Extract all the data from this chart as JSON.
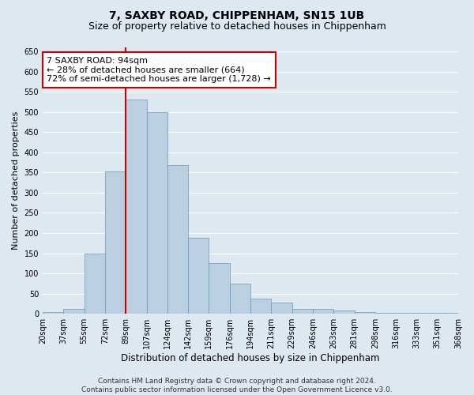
{
  "title": "7, SAXBY ROAD, CHIPPENHAM, SN15 1UB",
  "subtitle": "Size of property relative to detached houses in Chippenham",
  "xlabel": "Distribution of detached houses by size in Chippenham",
  "ylabel": "Number of detached properties",
  "bar_values": [
    5,
    13,
    150,
    353,
    530,
    500,
    368,
    188,
    125,
    75,
    38,
    27,
    13,
    13,
    8,
    5,
    3,
    3,
    3,
    2
  ],
  "categories": [
    "20sqm",
    "37sqm",
    "55sqm",
    "72sqm",
    "89sqm",
    "107sqm",
    "124sqm",
    "142sqm",
    "159sqm",
    "176sqm",
    "194sqm",
    "211sqm",
    "229sqm",
    "246sqm",
    "263sqm",
    "281sqm",
    "298sqm",
    "316sqm",
    "333sqm",
    "351sqm",
    "368sqm"
  ],
  "bar_color": "#bad0e0",
  "bar_edge_color": "#6699bb",
  "property_line_color": "#cc0000",
  "property_line_x": 3.5,
  "annotation_title": "7 SAXBY ROAD: 94sqm",
  "annotation_line1": "← 28% of detached houses are smaller (664)",
  "annotation_line2": "72% of semi-detached houses are larger (1,728) →",
  "annotation_box_color": "#ffffff",
  "annotation_box_edge": "#cc0000",
  "ylim": [
    0,
    660
  ],
  "yticks": [
    0,
    50,
    100,
    150,
    200,
    250,
    300,
    350,
    400,
    450,
    500,
    550,
    600,
    650
  ],
  "fig_bg_color": "#dde8f0",
  "plot_bg_color": "#dde8f0",
  "grid_color": "#ffffff",
  "title_fontsize": 10,
  "subtitle_fontsize": 9,
  "xlabel_fontsize": 8.5,
  "ylabel_fontsize": 8,
  "tick_fontsize": 7,
  "annotation_fontsize": 8,
  "footer_fontsize": 6.5,
  "footer1": "Contains HM Land Registry data © Crown copyright and database right 2024.",
  "footer2": "Contains public sector information licensed under the Open Government Licence v3.0."
}
